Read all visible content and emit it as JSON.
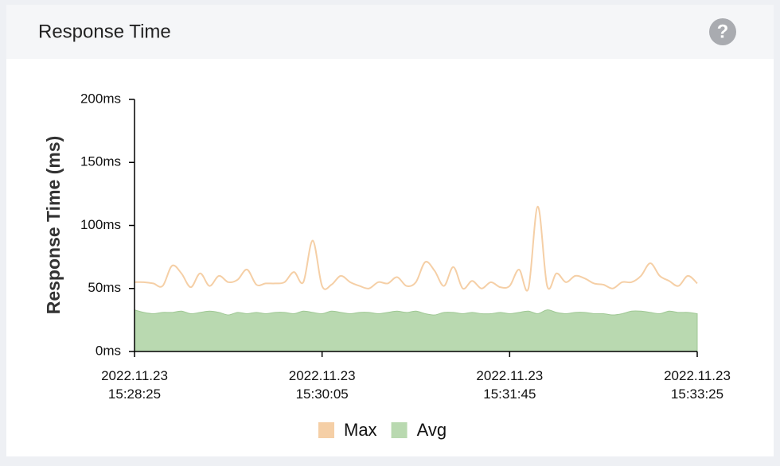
{
  "header": {
    "title": "Response Time"
  },
  "chart_data": {
    "type": "area",
    "ylabel": "Response Time (ms)",
    "x": [
      "2022.11.23 15:28:25",
      "2022.11.23 15:28:30",
      "2022.11.23 15:28:35",
      "2022.11.23 15:28:40",
      "2022.11.23 15:28:45",
      "2022.11.23 15:28:50",
      "2022.11.23 15:28:55",
      "2022.11.23 15:29:00",
      "2022.11.23 15:29:05",
      "2022.11.23 15:29:10",
      "2022.11.23 15:29:15",
      "2022.11.23 15:29:20",
      "2022.11.23 15:29:25",
      "2022.11.23 15:29:30",
      "2022.11.23 15:29:35",
      "2022.11.23 15:29:40",
      "2022.11.23 15:29:45",
      "2022.11.23 15:29:50",
      "2022.11.23 15:29:55",
      "2022.11.23 15:30:00",
      "2022.11.23 15:30:05",
      "2022.11.23 15:30:10",
      "2022.11.23 15:30:15",
      "2022.11.23 15:30:20",
      "2022.11.23 15:30:25",
      "2022.11.23 15:30:30",
      "2022.11.23 15:30:35",
      "2022.11.23 15:30:40",
      "2022.11.23 15:30:45",
      "2022.11.23 15:30:50",
      "2022.11.23 15:30:55",
      "2022.11.23 15:31:00",
      "2022.11.23 15:31:05",
      "2022.11.23 15:31:10",
      "2022.11.23 15:31:15",
      "2022.11.23 15:31:20",
      "2022.11.23 15:31:25",
      "2022.11.23 15:31:30",
      "2022.11.23 15:31:35",
      "2022.11.23 15:31:40",
      "2022.11.23 15:31:45",
      "2022.11.23 15:31:50",
      "2022.11.23 15:31:55",
      "2022.11.23 15:32:00",
      "2022.11.23 15:32:05",
      "2022.11.23 15:32:10",
      "2022.11.23 15:32:15",
      "2022.11.23 15:32:20",
      "2022.11.23 15:32:25",
      "2022.11.23 15:32:30",
      "2022.11.23 15:32:35",
      "2022.11.23 15:32:40",
      "2022.11.23 15:32:45",
      "2022.11.23 15:32:50",
      "2022.11.23 15:32:55",
      "2022.11.23 15:33:00",
      "2022.11.23 15:33:05",
      "2022.11.23 15:33:10",
      "2022.11.23 15:33:15",
      "2022.11.23 15:33:20",
      "2022.11.23 15:33:25"
    ],
    "series": [
      {
        "name": "Max",
        "color": "#f5cfa6",
        "fill": false,
        "values": [
          55,
          55,
          54,
          52,
          68,
          62,
          51,
          62,
          52,
          60,
          55,
          57,
          65,
          53,
          54,
          54,
          55,
          63,
          55,
          88,
          52,
          53,
          60,
          55,
          52,
          50,
          55,
          54,
          59,
          52,
          55,
          71,
          64,
          52,
          67,
          50,
          56,
          50,
          55,
          51,
          52,
          65,
          50,
          115,
          52,
          62,
          55,
          60,
          58,
          54,
          53,
          50,
          55,
          55,
          60,
          70,
          60,
          56,
          52,
          60,
          54
        ]
      },
      {
        "name": "Avg",
        "color": "#b9d9b0",
        "fill": true,
        "values": [
          33,
          31,
          30,
          31,
          31,
          32,
          30,
          31,
          32,
          31,
          29,
          31,
          30,
          31,
          30,
          31,
          31,
          30,
          32,
          31,
          30,
          32,
          31,
          30,
          31,
          31,
          30,
          31,
          32,
          31,
          32,
          30,
          29,
          31,
          31,
          30,
          31,
          30,
          30,
          31,
          30,
          31,
          32,
          30,
          33,
          31,
          30,
          31,
          31,
          30,
          30,
          29,
          30,
          32,
          32,
          31,
          30,
          32,
          31,
          31,
          30
        ]
      }
    ],
    "ylim": [
      0,
      200
    ],
    "yticks": [
      {
        "value": 0,
        "label": "0ms"
      },
      {
        "value": 50,
        "label": "50ms"
      },
      {
        "value": 100,
        "label": "100ms"
      },
      {
        "value": 150,
        "label": "150ms"
      },
      {
        "value": 200,
        "label": "200ms"
      }
    ],
    "xlim": [
      "2022.11.23 15:28:25",
      "2022.11.23 15:33:25"
    ],
    "xticks": [
      "2022.11.23 15:28:25",
      "2022.11.23 15:30:05",
      "2022.11.23 15:31:45",
      "2022.11.23 15:33:25"
    ]
  }
}
